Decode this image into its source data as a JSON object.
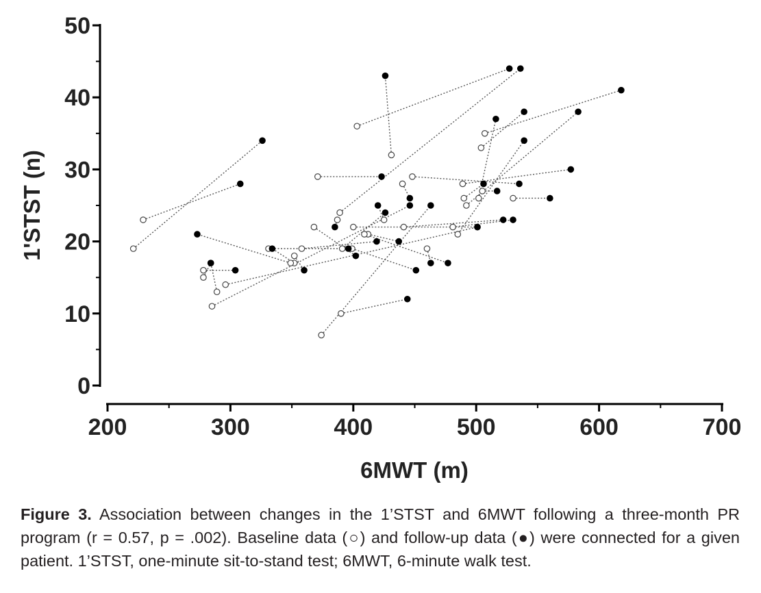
{
  "chart_data": {
    "type": "scatter",
    "xlabel": "6MWT (m)",
    "ylabel": "1'STST (n)",
    "xlim": [
      200,
      700
    ],
    "ylim": [
      0,
      50
    ],
    "x_ticks": [
      200,
      300,
      400,
      500,
      600,
      700
    ],
    "y_ticks": [
      0,
      10,
      20,
      30,
      40,
      50
    ],
    "grid": false,
    "legend": "none",
    "colors": {
      "axis": "#000000",
      "baseline_fill": "#ffffff",
      "followup_fill": "#000000",
      "connector": "#555555"
    },
    "pairs": [
      {
        "baseline": [
          221,
          19
        ],
        "followup": [
          326,
          34
        ]
      },
      {
        "baseline": [
          229,
          23
        ],
        "followup": [
          308,
          28
        ]
      },
      {
        "baseline": [
          403,
          36
        ],
        "followup": [
          527,
          44
        ]
      },
      {
        "baseline": [
          431,
          32
        ],
        "followup": [
          426,
          43
        ]
      },
      {
        "baseline": [
          389,
          24
        ],
        "followup": [
          536,
          44
        ]
      },
      {
        "baseline": [
          507,
          35
        ],
        "followup": [
          618,
          41
        ]
      },
      {
        "baseline": [
          504,
          33
        ],
        "followup": [
          539,
          38
        ]
      },
      {
        "baseline": [
          492,
          25
        ],
        "followup": [
          583,
          38
        ]
      },
      {
        "baseline": [
          502,
          26
        ],
        "followup": [
          516,
          37
        ]
      },
      {
        "baseline": [
          485,
          21
        ],
        "followup": [
          539,
          34
        ]
      },
      {
        "baseline": [
          489,
          28
        ],
        "followup": [
          577,
          30
        ]
      },
      {
        "baseline": [
          448,
          29
        ],
        "followup": [
          535,
          28
        ]
      },
      {
        "baseline": [
          490,
          26
        ],
        "followup": [
          506,
          28
        ]
      },
      {
        "baseline": [
          505,
          27
        ],
        "followup": [
          517,
          27
        ]
      },
      {
        "baseline": [
          530,
          26
        ],
        "followup": [
          560,
          26
        ]
      },
      {
        "baseline": [
          371,
          29
        ],
        "followup": [
          423,
          29
        ]
      },
      {
        "baseline": [
          425,
          23
        ],
        "followup": [
          420,
          25
        ]
      },
      {
        "baseline": [
          440,
          28
        ],
        "followup": [
          446,
          26
        ]
      },
      {
        "baseline": [
          391,
          19
        ],
        "followup": [
          426,
          24
        ]
      },
      {
        "baseline": [
          387,
          23
        ],
        "followup": [
          385,
          22
        ]
      },
      {
        "baseline": [
          441,
          22
        ],
        "followup": [
          522,
          23
        ]
      },
      {
        "baseline": [
          481,
          22
        ],
        "followup": [
          530,
          23
        ]
      },
      {
        "baseline": [
          412,
          21
        ],
        "followup": [
          437,
          20
        ]
      },
      {
        "baseline": [
          368,
          22
        ],
        "followup": [
          402,
          18
        ]
      },
      {
        "baseline": [
          331,
          19
        ],
        "followup": [
          396,
          19
        ]
      },
      {
        "baseline": [
          352,
          17
        ],
        "followup": [
          334,
          19
        ]
      },
      {
        "baseline": [
          349,
          17
        ],
        "followup": [
          273,
          21
        ]
      },
      {
        "baseline": [
          358,
          19
        ],
        "followup": [
          419,
          20
        ]
      },
      {
        "baseline": [
          399,
          19
        ],
        "followup": [
          451,
          16
        ]
      },
      {
        "baseline": [
          352,
          18
        ],
        "followup": [
          360,
          16
        ]
      },
      {
        "baseline": [
          460,
          19
        ],
        "followup": [
          463,
          17
        ]
      },
      {
        "baseline": [
          409,
          21
        ],
        "followup": [
          477,
          17
        ]
      },
      {
        "baseline": [
          278,
          16
        ],
        "followup": [
          304,
          16
        ]
      },
      {
        "baseline": [
          278,
          15
        ],
        "followup": [
          284,
          17
        ]
      },
      {
        "baseline": [
          289,
          13
        ],
        "followup": [
          284,
          17
        ]
      },
      {
        "baseline": [
          285,
          11
        ],
        "followup": [
          446,
          25
        ]
      },
      {
        "baseline": [
          390,
          10
        ],
        "followup": [
          444,
          12
        ]
      },
      {
        "baseline": [
          374,
          7
        ],
        "followup": [
          463,
          25
        ]
      },
      {
        "baseline": [
          400,
          22
        ],
        "followup": [
          501,
          22
        ]
      },
      {
        "baseline": [
          296,
          14
        ],
        "followup": [
          501,
          22
        ]
      }
    ]
  },
  "caption": {
    "label": "Figure 3.",
    "text": " Association between changes in the 1’STST and 6MWT following a three-month PR program (r = 0.57, p = .002). Baseline data (○) and follow-up data (●) were connected for a given patient. 1’STST, one-minute sit-to-stand test; 6MWT, 6-minute walk test."
  }
}
